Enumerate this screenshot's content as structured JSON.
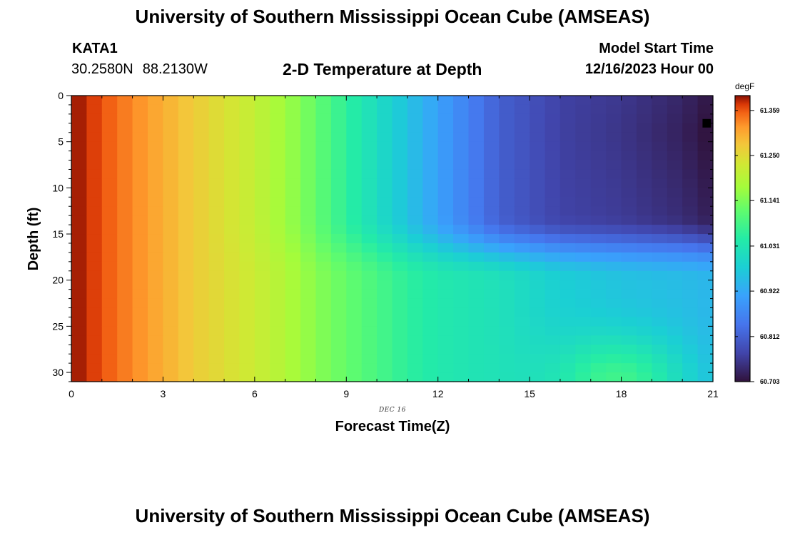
{
  "header": {
    "title": "University of Southern Mississippi Ocean Cube (AMSEAS)",
    "station": "KATA1",
    "latitude": "30.2580N",
    "longitude": "88.2130W",
    "subtitle": "2-D Temperature at Depth",
    "model_start_label": "Model Start Time",
    "model_start_value": "12/16/2023 Hour 00"
  },
  "footer": {
    "title": "University of Southern Mississippi Ocean Cube (AMSEAS)"
  },
  "chart_data": {
    "type": "heatmap",
    "title": "2-D Temperature at Depth",
    "xlabel": "Forecast Time(Z)",
    "ylabel": "Depth (ft)",
    "date_label": "DEC 16",
    "xlim": [
      0,
      21
    ],
    "ylim": [
      0,
      31
    ],
    "x_ticks": [
      0,
      3,
      6,
      9,
      12,
      15,
      18,
      21
    ],
    "y_ticks": [
      0,
      5,
      10,
      15,
      20,
      25,
      30
    ],
    "colorbar": {
      "unit": "degF",
      "min": 60.703,
      "max": 61.395,
      "tick_labels": [
        "61.359",
        "61.250",
        "61.141",
        "61.031",
        "60.922",
        "60.812",
        "60.703"
      ],
      "tick_values": [
        61.359,
        61.25,
        61.141,
        61.031,
        60.922,
        60.812,
        60.703
      ],
      "colormap": "turbo"
    },
    "surface_marker": {
      "x": 20.8,
      "depth": 3
    },
    "field_model": {
      "description": "Approximate temperature (degF) versus forecast hour and depth, read from the color field",
      "upper_layer_depth_ft": 17,
      "upper_by_hour": [
        [
          0,
          61.395
        ],
        [
          2,
          61.33
        ],
        [
          4,
          61.27
        ],
        [
          6,
          61.21
        ],
        [
          7,
          61.17
        ],
        [
          8,
          61.12
        ],
        [
          9,
          61.06
        ],
        [
          10,
          61.01
        ],
        [
          11,
          60.96
        ],
        [
          12,
          60.91
        ],
        [
          13,
          60.86
        ],
        [
          14,
          60.81
        ],
        [
          15,
          60.79
        ],
        [
          16,
          60.77
        ],
        [
          18,
          60.76
        ],
        [
          20,
          60.74
        ],
        [
          21,
          60.72
        ]
      ],
      "lower_by_hour": [
        [
          0,
          61.395
        ],
        [
          2,
          61.33
        ],
        [
          4,
          61.27
        ],
        [
          6,
          61.22
        ],
        [
          7,
          61.19
        ],
        [
          8,
          61.15
        ],
        [
          9,
          61.12
        ],
        [
          10,
          61.09
        ],
        [
          11,
          61.06
        ],
        [
          12,
          61.04
        ],
        [
          14,
          61.02
        ],
        [
          15,
          61.0
        ],
        [
          16,
          60.98
        ],
        [
          18,
          60.96
        ],
        [
          20,
          60.95
        ],
        [
          21,
          60.94
        ]
      ],
      "bottom_warm_anomaly": {
        "peak_hour": 18,
        "peak_depth_ft": 31,
        "amplitude_degF": 0.12
      }
    }
  }
}
